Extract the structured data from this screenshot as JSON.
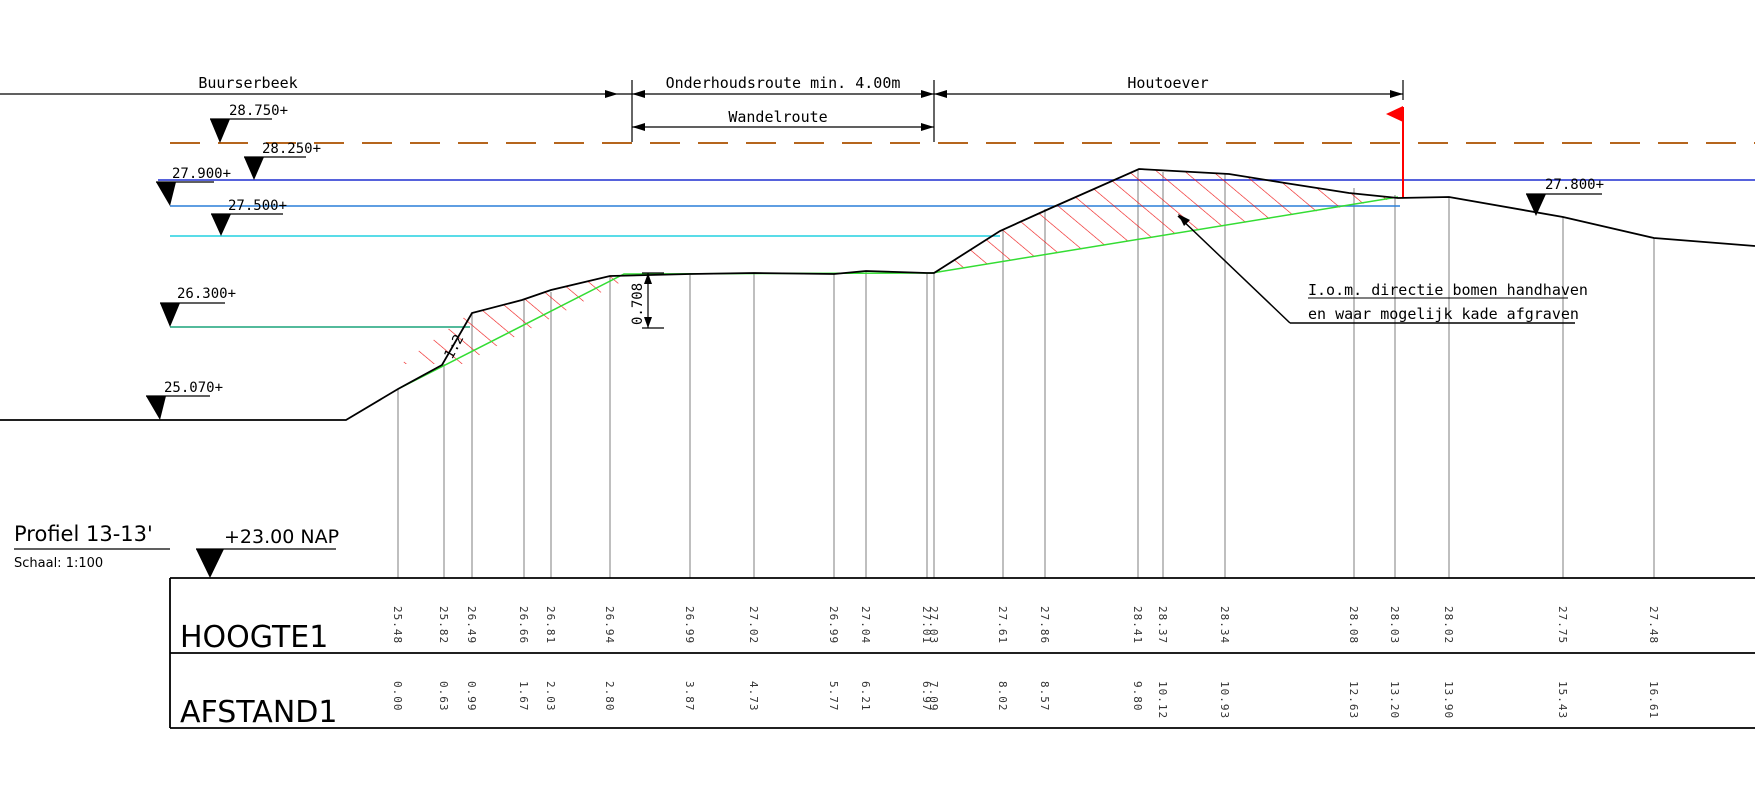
{
  "profile": {
    "title": "Profiel 13-13'",
    "scale": "Schaal: 1:100",
    "reference": "+23.00 NAP"
  },
  "zones": {
    "buurserbeek": "Buurserbeek",
    "onderhoud": "Onderhoudsroute min. 4.00m",
    "wandel": "Wandelroute",
    "houtoever": "Houtoever"
  },
  "levels": {
    "l28750": "28.750+",
    "l28250": "28.250+",
    "l27900": "27.900+",
    "l27500": "27.500+",
    "l26300": "26.300+",
    "l25070": "25.070+",
    "l27800": "27.800+"
  },
  "annotations": {
    "dim": "0.708",
    "slope": "1:2",
    "note_line1": "I.o.m. directie bomen handhaven",
    "note_line2": "en waar mogelijk kade afgraven"
  },
  "table": {
    "row1_label": "HOOGTE1",
    "row2_label": "AFSTAND1",
    "hoogte": [
      "25.48",
      "25.82",
      "26.49",
      "26.66",
      "26.81",
      "26.94",
      "26.99",
      "27.02",
      "26.99",
      "27.04",
      "27.01",
      "27.03",
      "27.61",
      "27.86",
      "28.41",
      "28.37",
      "28.34",
      "28.08",
      "28.03",
      "28.02",
      "27.75",
      "27.48"
    ],
    "afstand": [
      "0.00",
      "0.63",
      "0.99",
      "1.67",
      "2.03",
      "2.80",
      "3.87",
      "4.73",
      "5.77",
      "6.21",
      "6.97",
      "7.09",
      "8.02",
      "8.57",
      "9.80",
      "10.12",
      "10.93",
      "12.63",
      "13.20",
      "13.90",
      "15.43",
      "16.61"
    ]
  },
  "colors": {
    "existing_ground": "#000000",
    "design_profile": "#33dd33",
    "hatch": "#ee1111",
    "water_28250": "#b5651d",
    "water_27900": "#1f2fd0",
    "water_27500": "#2a7fd8",
    "water_27200": "#22d0e0",
    "water_26300": "#1aa37a",
    "stations": "#aaaaaa",
    "marker_flag": "#ff0000"
  }
}
